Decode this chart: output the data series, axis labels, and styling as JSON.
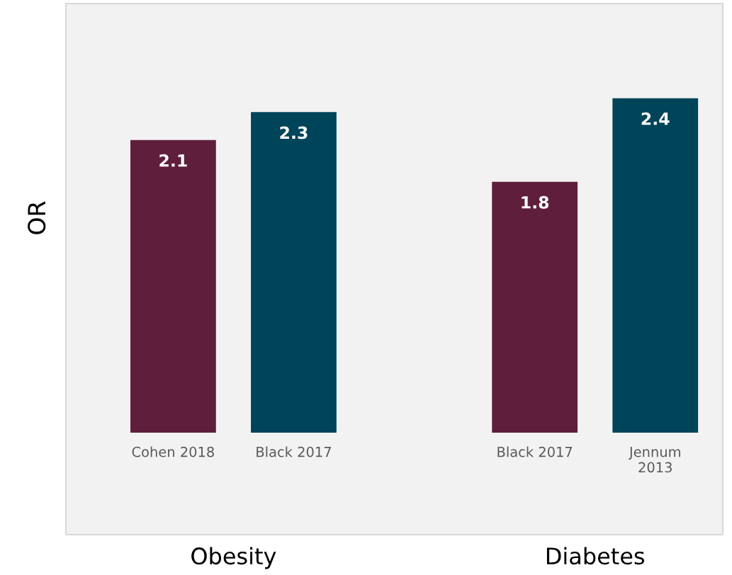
{
  "chart_data": {
    "type": "bar",
    "ylabel": "OR",
    "categories": [
      "Cohen 2018",
      "Black 2017",
      null,
      "Black 2017",
      "Jennum\n2013"
    ],
    "values": [
      2.1,
      2.3,
      null,
      1.8,
      2.4
    ],
    "colors": [
      "#5f1e3c",
      "#00445a",
      "#5f1e3c",
      "#5f1e3c",
      "#00445a"
    ],
    "data_labels": true,
    "tick_labels": "x",
    "grid": false,
    "legend": false,
    "annotations": [
      "Obesity",
      "Diabetes"
    ]
  }
}
